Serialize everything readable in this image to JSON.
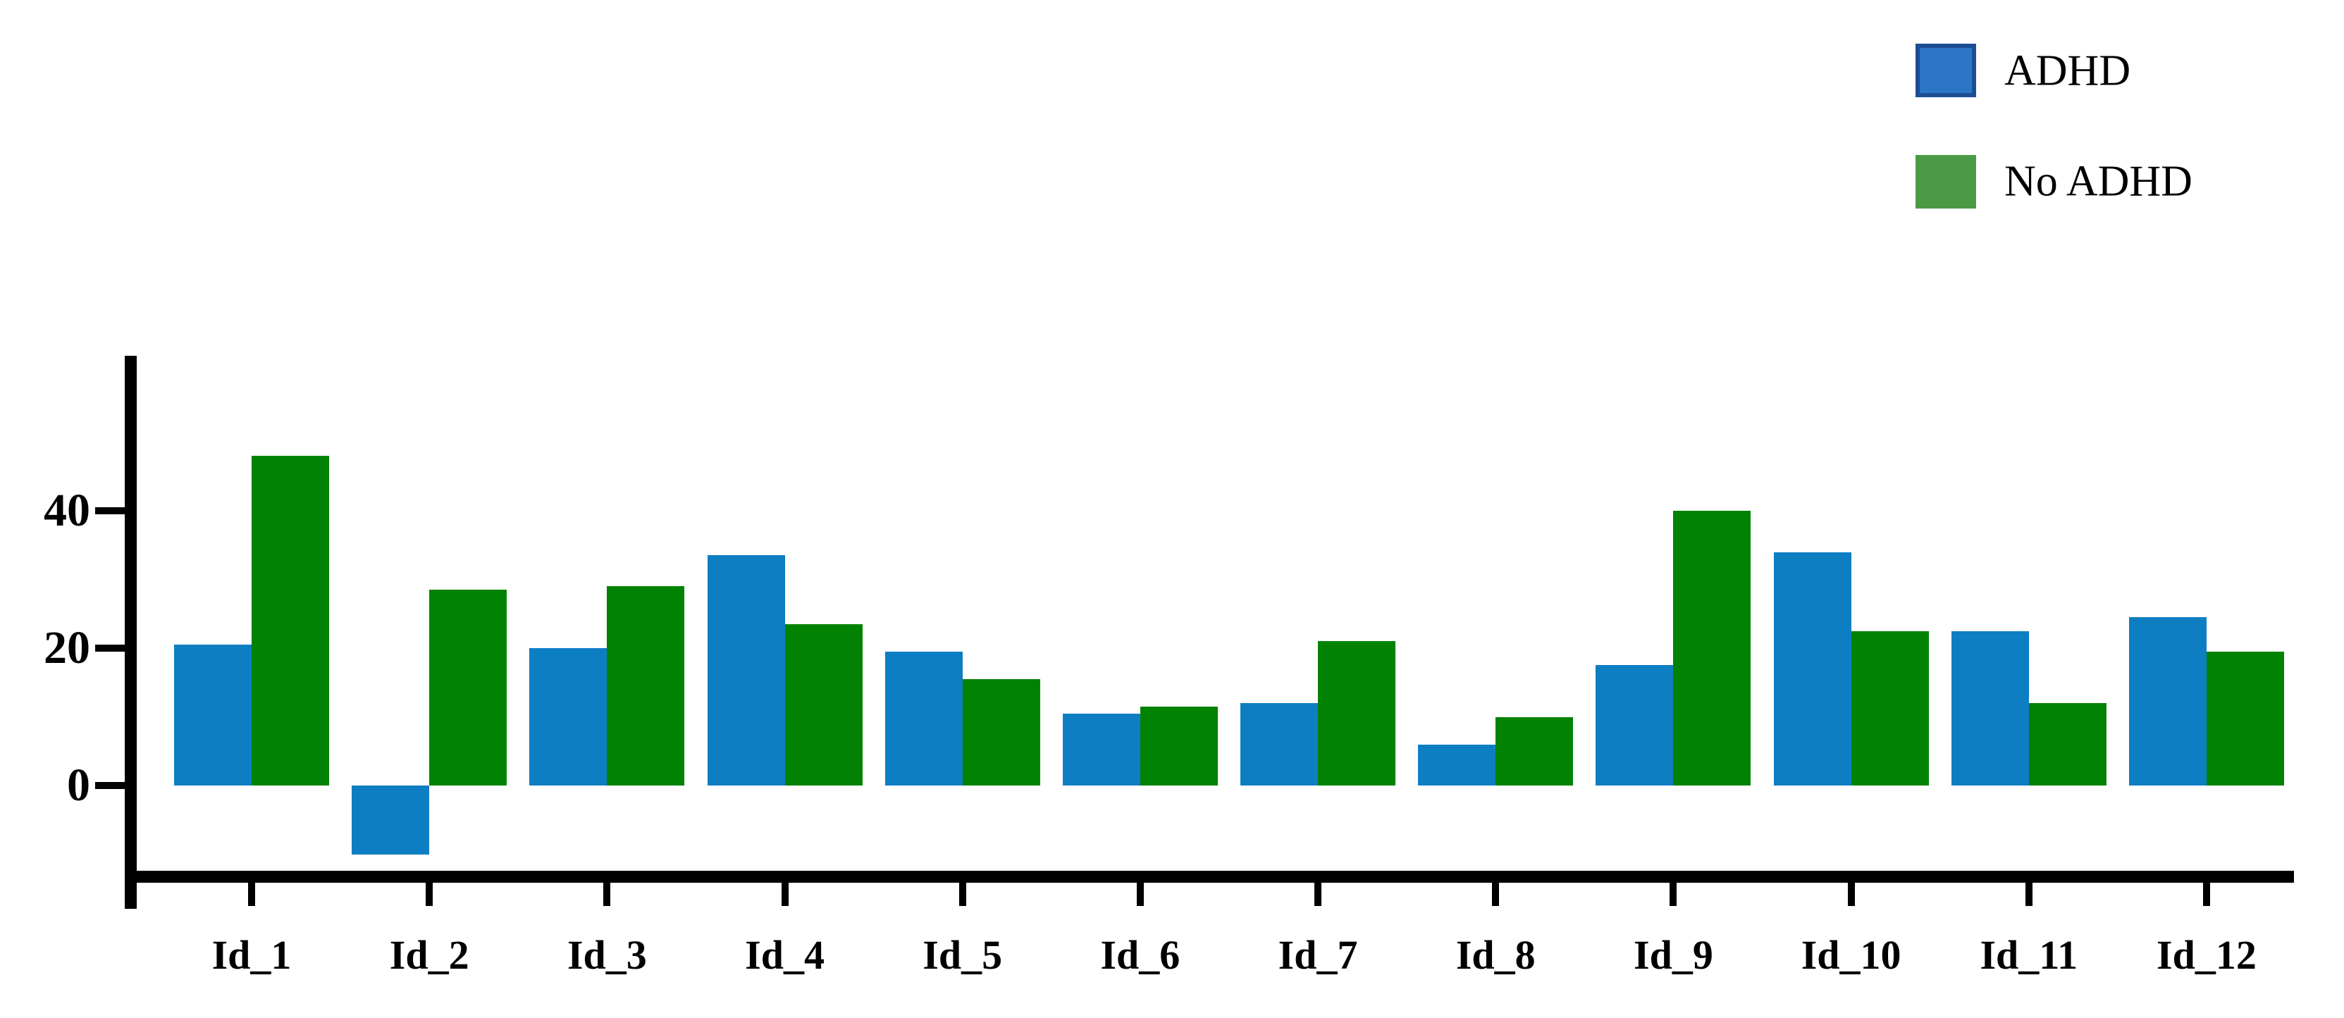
{
  "chart_data": {
    "type": "bar",
    "title": "",
    "xlabel": "",
    "ylabel": "",
    "categories": [
      "Id_1",
      "Id_2",
      "Id_3",
      "Id_4",
      "Id_5",
      "Id_6",
      "Id_7",
      "Id_8",
      "Id_9",
      "Id_10",
      "Id_11",
      "Id_12"
    ],
    "series": [
      {
        "name": "ADHD",
        "color": "#0E7EC3",
        "values": [
          20.5,
          -10,
          20,
          33.5,
          19.5,
          10.5,
          12,
          6,
          17.5,
          34,
          22.5,
          24.5
        ]
      },
      {
        "name": "No ADHD",
        "color": "#028202",
        "values": [
          48,
          28.5,
          29,
          23.5,
          15.5,
          11.5,
          21,
          10,
          40,
          22.5,
          12,
          19.5
        ]
      }
    ],
    "y_ticks": [
      0,
      20,
      40
    ],
    "y_tick_labels": [
      "0",
      "20",
      "40"
    ],
    "ylim": [
      -12.5,
      62.5
    ],
    "grid": false,
    "legend_position": "top-right",
    "legend": [
      {
        "label": "ADHD",
        "fill": "#2B76C5",
        "border": "#1C4E94"
      },
      {
        "label": "No ADHD",
        "fill": "#4C9A45",
        "border": "#4C9A45"
      }
    ],
    "axis_color": "#000000"
  }
}
